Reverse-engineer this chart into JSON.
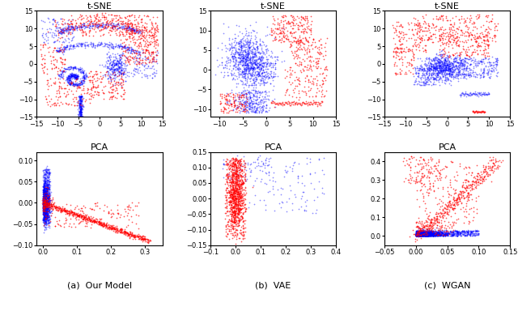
{
  "titles_row1": [
    "t-SNE",
    "t-SNE",
    "t-SNE"
  ],
  "titles_row2": [
    "PCA",
    "PCA",
    "PCA"
  ],
  "col_labels": [
    "(a)  Our Model",
    "(b)  VAE",
    "(c)  WGAN"
  ],
  "col1_tsne": {
    "xlim": [
      -15,
      15
    ],
    "ylim": [
      -15,
      15
    ],
    "xticks": [
      -15,
      -10,
      -5,
      0,
      5,
      10,
      15
    ],
    "yticks": [
      -15,
      -10,
      -5,
      0,
      5,
      10,
      15
    ]
  },
  "col2_tsne": {
    "xlim": [
      -12,
      15
    ],
    "ylim": [
      -12,
      15
    ],
    "xticks": [
      -10,
      -5,
      0,
      5,
      10,
      15
    ],
    "yticks": [
      -10,
      -5,
      0,
      5,
      10,
      15
    ]
  },
  "col3_tsne": {
    "xlim": [
      -15,
      15
    ],
    "ylim": [
      -15,
      15
    ],
    "xticks": [
      -15,
      -10,
      -5,
      0,
      5,
      10,
      15
    ],
    "yticks": [
      -15,
      -10,
      -5,
      0,
      5,
      10,
      15
    ]
  },
  "col1_pca": {
    "xlim": [
      -0.02,
      0.35
    ],
    "ylim": [
      -0.1,
      0.12
    ],
    "xticks": [
      0.0,
      0.1,
      0.2,
      0.3
    ],
    "yticks": [
      -0.1,
      -0.05,
      0.0,
      0.05,
      0.1
    ]
  },
  "col2_pca": {
    "xlim": [
      -0.1,
      0.4
    ],
    "ylim": [
      -0.15,
      0.15
    ],
    "xticks": [
      -0.1,
      0.0,
      0.1,
      0.2,
      0.3,
      0.4
    ],
    "yticks": [
      -0.15,
      -0.1,
      -0.05,
      0.0,
      0.05,
      0.1,
      0.15
    ]
  },
  "col3_pca": {
    "xlim": [
      -0.05,
      0.15
    ],
    "ylim": [
      -0.05,
      0.45
    ],
    "xticks": [
      -0.05,
      0.0,
      0.05,
      0.1,
      0.15
    ],
    "yticks": [
      0.0,
      0.1,
      0.2,
      0.3,
      0.4
    ]
  },
  "blue": "#0000FF",
  "red": "#FF0000",
  "alpha_blue": 0.45,
  "alpha_red": 0.65,
  "marker_size": 1.5,
  "seed": 42
}
